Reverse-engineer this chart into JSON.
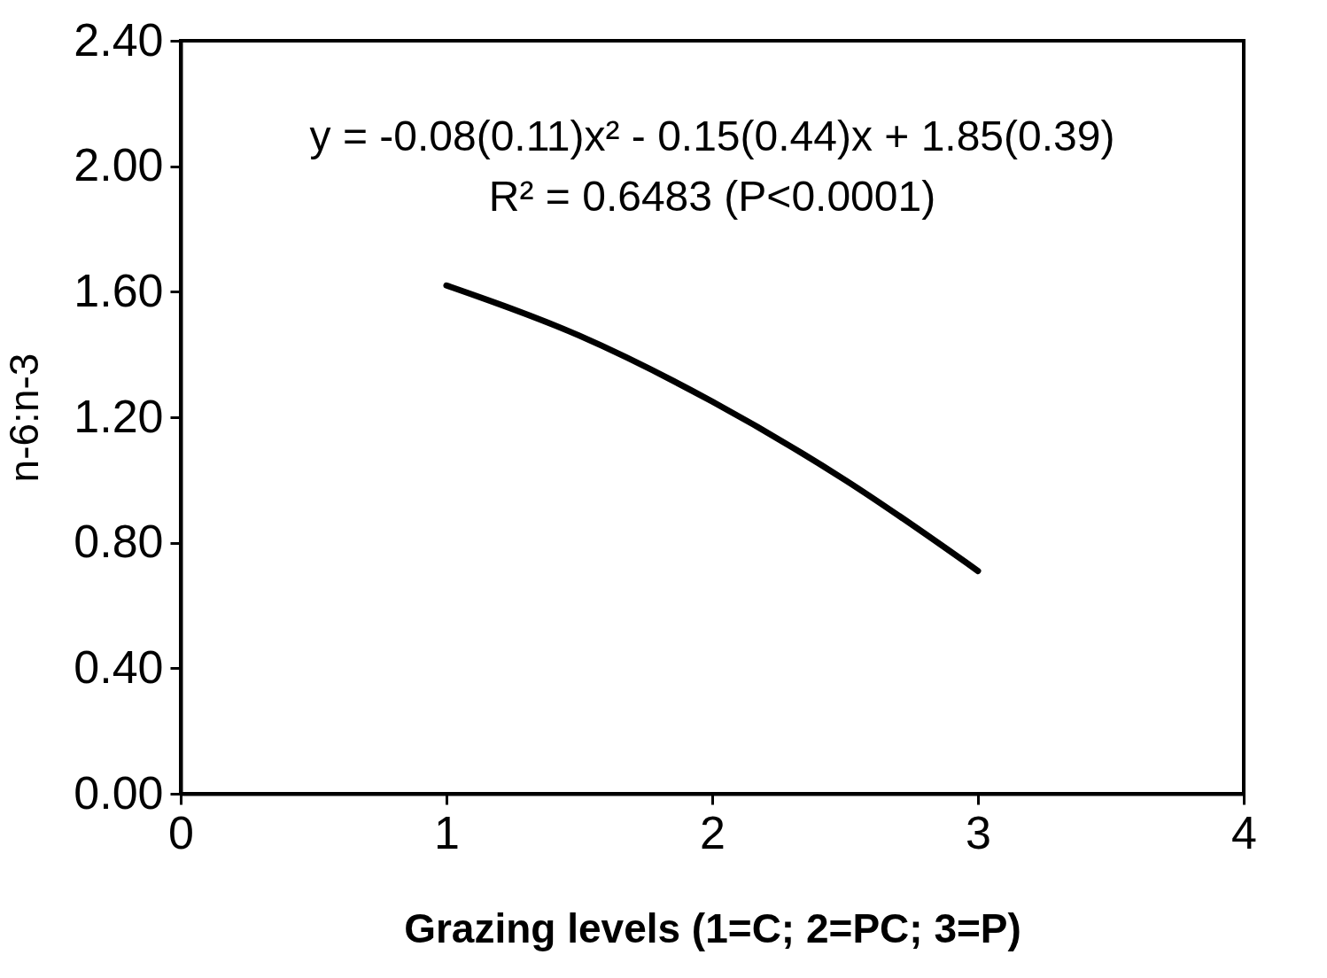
{
  "chart_data": {
    "type": "line",
    "xlabel": "Grazing levels (1=C; 2=PC; 3=P)",
    "ylabel": "n-6:n-3",
    "annotations": [
      "y = -0.08(0.11)x² - 0.15(0.44)x + 1.85(0.39)",
      "R² = 0.6483 (P<0.0001)"
    ],
    "series": [
      {
        "color": "#000000",
        "x": [
          1,
          1.5,
          2,
          2.5,
          3
        ],
        "values": [
          1.62,
          1.46,
          1.25,
          1.0,
          0.71
        ]
      }
    ],
    "xlim": [
      0,
      4
    ],
    "xticks": [
      0,
      1,
      2,
      3,
      4
    ],
    "ylim": [
      0,
      2.4
    ],
    "yticks": [
      {
        "value": 0,
        "label": "0.00"
      },
      {
        "value": 0.4,
        "label": "0.40"
      },
      {
        "value": 0.8,
        "label": "0.80"
      },
      {
        "value": 1.2,
        "label": "1.20"
      },
      {
        "value": 1.6,
        "label": "1.60"
      },
      {
        "value": 2,
        "label": "2.00"
      },
      {
        "value": 2.4,
        "label": "2.40"
      }
    ],
    "grid": false,
    "marker": "none",
    "line_style": "solid"
  }
}
